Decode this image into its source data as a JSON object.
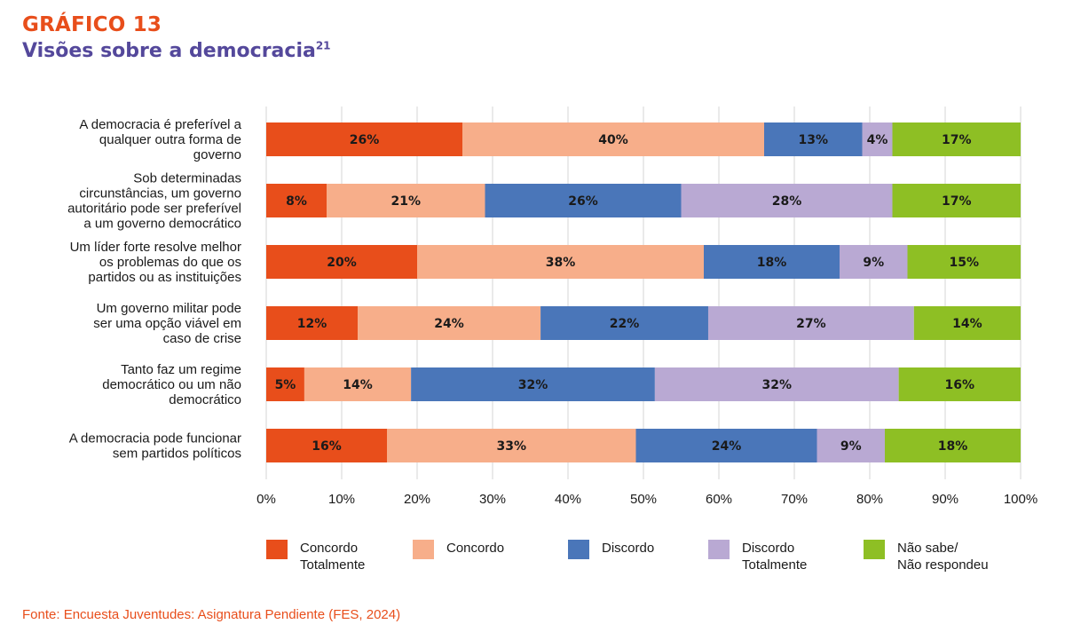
{
  "header": {
    "kicker": "GRÁFICO 13",
    "title": "Visões sobre a democracia",
    "footnote_ref": "21"
  },
  "chart_data": {
    "type": "bar",
    "orientation": "horizontal",
    "stacked": true,
    "title": "Visões sobre a democracia",
    "xlabel": "",
    "ylabel": "",
    "xlim": [
      0,
      100
    ],
    "x_ticks": [
      "0%",
      "10%",
      "20%",
      "30%",
      "40%",
      "50%",
      "60%",
      "70%",
      "80%",
      "90%",
      "100%"
    ],
    "grid": true,
    "legend_position": "bottom",
    "categories": [
      "A democracia é preferível a qualquer outra forma de governo",
      "Sob determinadas circunstâncias, um governo autoritário pode ser preferível a um governo democrático",
      "Um líder forte resolve melhor os problemas do que os partidos ou as instituições",
      "Um governo militar pode ser uma opção viável em caso de crise",
      "Tanto faz um regime democrático ou um não democrático",
      "A democracia pode funcionar sem partidos políticos"
    ],
    "category_lines": [
      [
        "A democracia é preferível a",
        "qualquer outra forma de",
        "governo"
      ],
      [
        "Sob determinadas",
        "circunstâncias, um governo",
        "autoritário pode ser preferível",
        "a um governo democrático"
      ],
      [
        "Um líder forte resolve melhor",
        "os problemas do que os",
        "partidos ou as instituições"
      ],
      [
        "Um governo militar pode",
        "ser uma opção viável em",
        "caso de crise"
      ],
      [
        "Tanto faz um regime",
        "democrático ou um não",
        "democrático"
      ],
      [
        "A democracia pode funcionar",
        "sem partidos políticos"
      ]
    ],
    "series": [
      {
        "name": "Concordo Totalmente",
        "legend_text": "Concordo\nTotalmente",
        "color": "#e84e1b",
        "values": [
          26,
          8,
          20,
          12,
          5,
          16
        ]
      },
      {
        "name": "Concordo",
        "legend_text": "Concordo",
        "color": "#f7ae8a",
        "values": [
          40,
          21,
          38,
          24,
          14,
          33
        ]
      },
      {
        "name": "Discordo",
        "legend_text": "Discordo",
        "color": "#4a76b9",
        "values": [
          13,
          26,
          18,
          22,
          32,
          24
        ]
      },
      {
        "name": "Discordo Totalmente",
        "legend_text": "Discordo\nTotalmente",
        "color": "#b9a9d3",
        "values": [
          4,
          28,
          9,
          27,
          32,
          9
        ]
      },
      {
        "name": "Não sabe/Não respondeu",
        "legend_text": "Não sabe/\nNão respondeu",
        "color": "#8ebf24",
        "values": [
          17,
          17,
          15,
          14,
          16,
          18
        ]
      }
    ],
    "value_suffix": "%"
  },
  "source": "Fonte: Encuesta Juventudes: Asignatura Pendiente (FES, 2024)"
}
